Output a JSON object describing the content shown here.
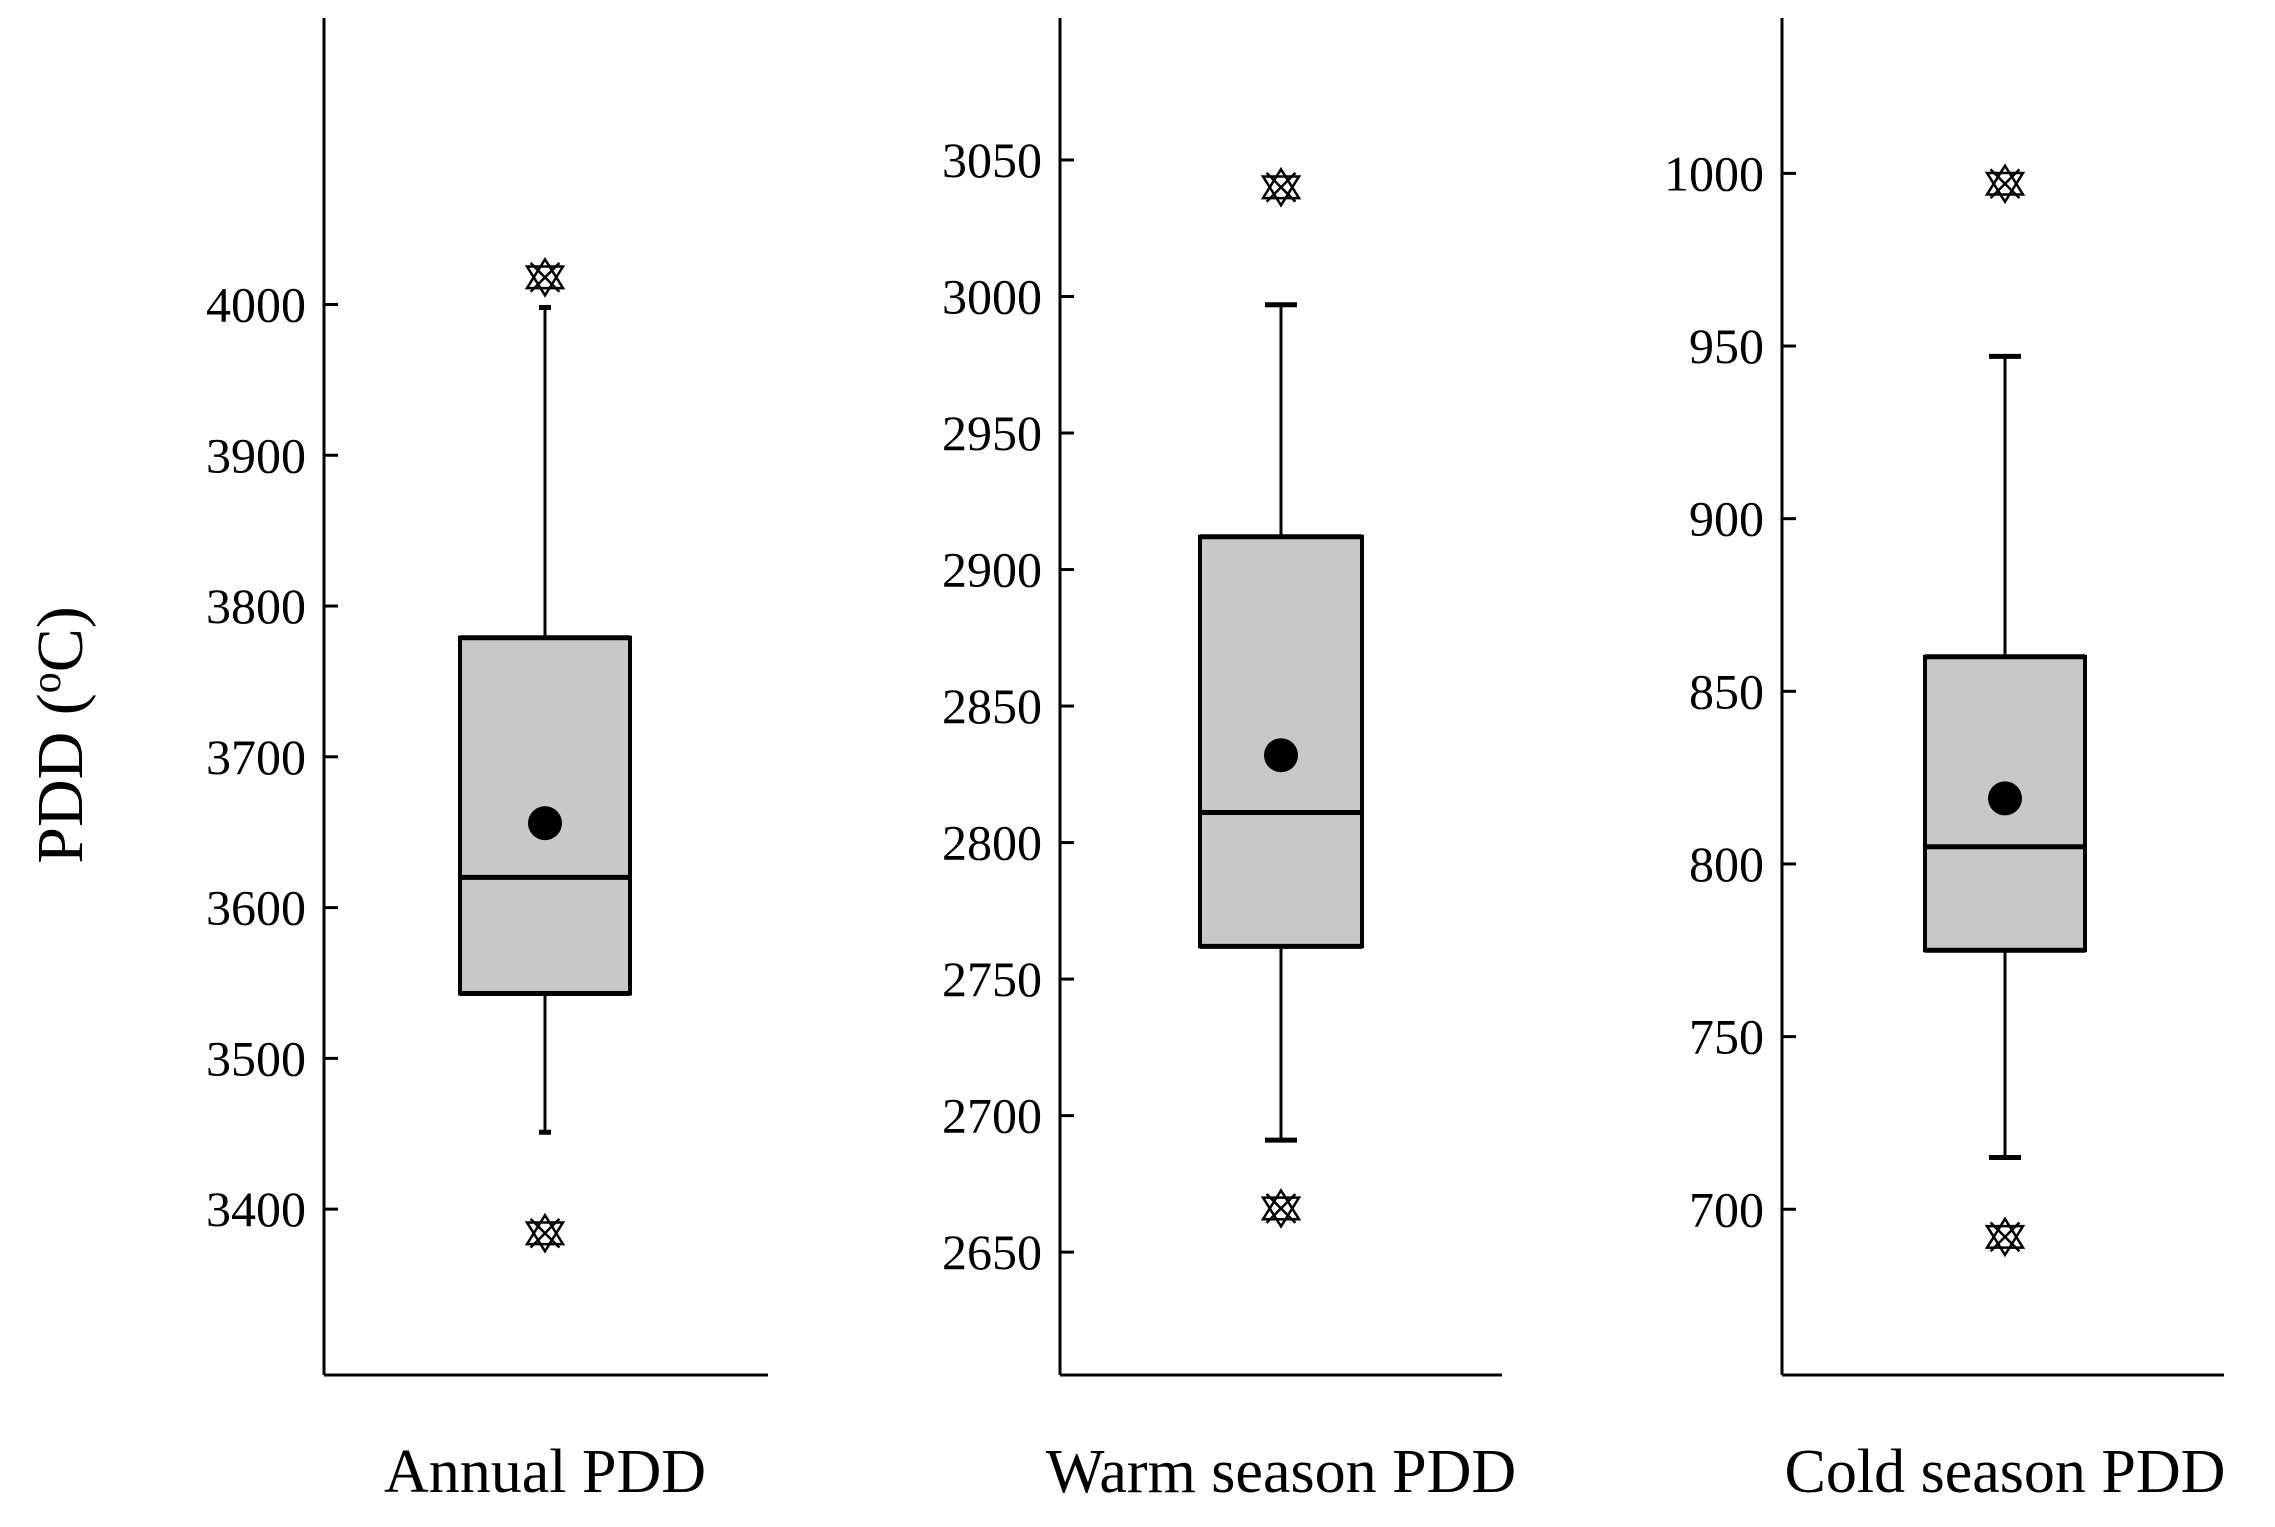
{
  "chart_data": [
    {
      "type": "box",
      "category": "Annual PDD",
      "ylabel": "PDD (°C)",
      "ylabel_parts": {
        "prefix": "PDD (",
        "superscript": "o",
        "suffix": "C)"
      },
      "ylim": [
        3290,
        4190
      ],
      "yticks": [
        3400,
        3500,
        3600,
        3700,
        3800,
        3900,
        4000
      ],
      "stats": {
        "whisker_low": 3451,
        "q1": 3543,
        "median": 3620,
        "mean": 3656,
        "q3": 3779,
        "whisker_high": 3998
      },
      "extremes": [
        3384,
        4018
      ]
    },
    {
      "type": "box",
      "category": "Warm season PDD",
      "ylim": [
        2605,
        3102
      ],
      "yticks": [
        2650,
        2700,
        2750,
        2800,
        2850,
        2900,
        2950,
        3000,
        3050
      ],
      "stats": {
        "whisker_low": 2691,
        "q1": 2762,
        "median": 2811,
        "mean": 2832,
        "q3": 2912,
        "whisker_high": 2997
      },
      "extremes": [
        2666,
        3040
      ]
    },
    {
      "type": "box",
      "category": "Cold season PDD",
      "ylim": [
        652,
        1045
      ],
      "yticks": [
        700,
        750,
        800,
        850,
        900,
        950,
        1000
      ],
      "stats": {
        "whisker_low": 715,
        "q1": 775,
        "median": 805,
        "mean": 819,
        "q3": 860,
        "whisker_high": 947
      },
      "extremes": [
        692,
        997
      ]
    }
  ],
  "colors": {
    "box_fill": "#c8c8c8",
    "stroke": "#000000",
    "background": "#ffffff"
  }
}
